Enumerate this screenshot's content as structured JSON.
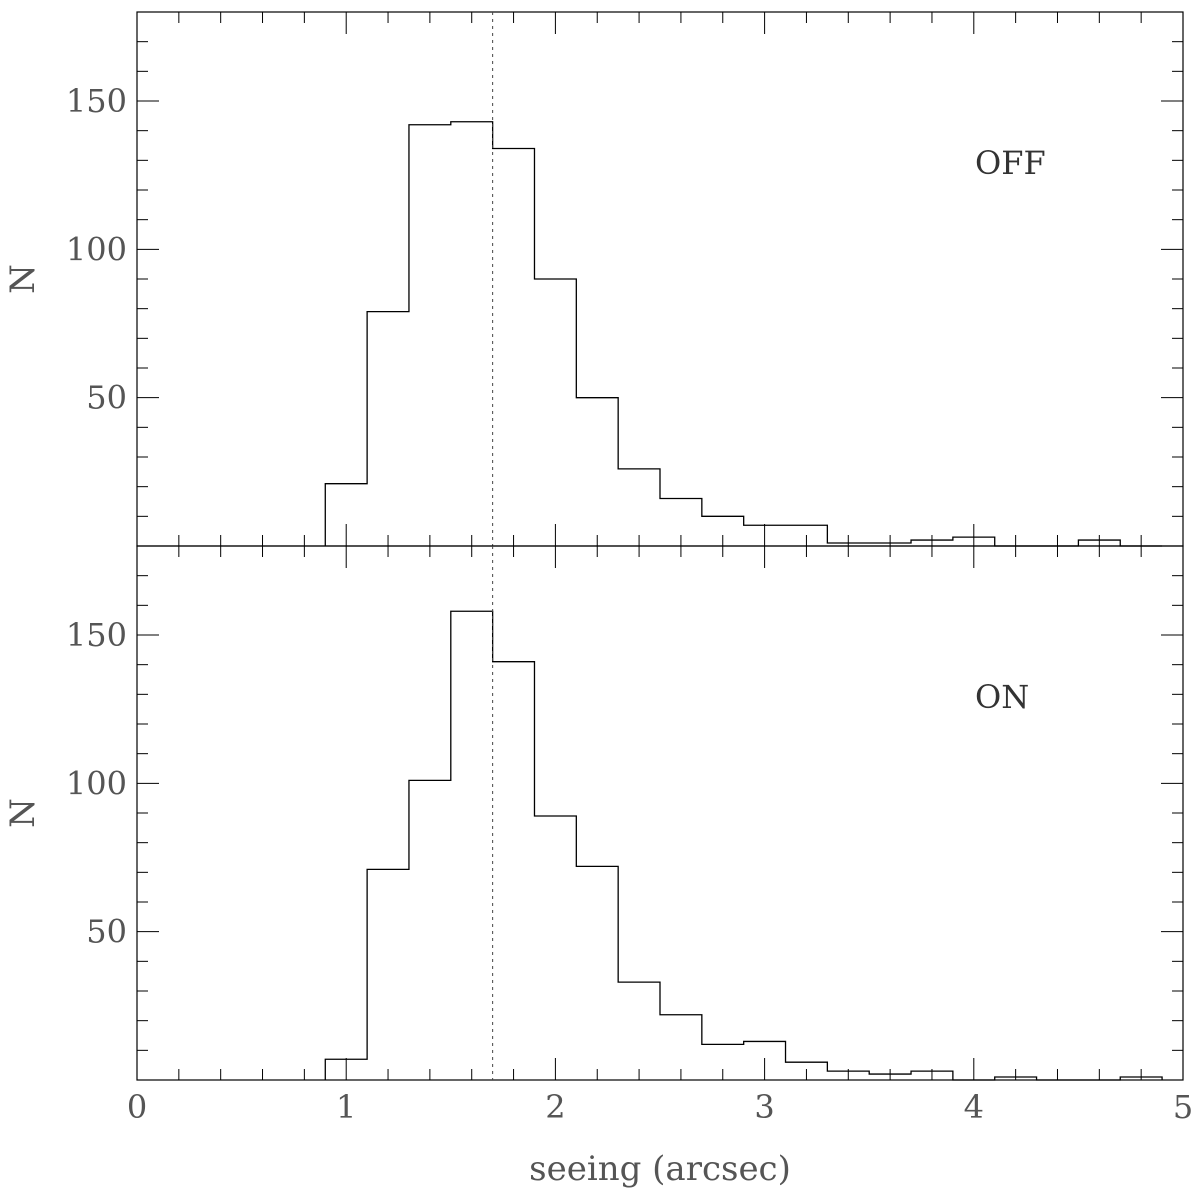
{
  "chart_data": [
    {
      "type": "histogram",
      "panel": "top",
      "label": "OFF",
      "ylabel": "N",
      "xlabel": "",
      "xlim": [
        0,
        5
      ],
      "ylim": [
        0,
        180
      ],
      "x_ticks": [
        0,
        1,
        2,
        3,
        4,
        5
      ],
      "y_ticks": [
        50,
        100,
        150
      ],
      "x_tick_labels": [],
      "y_tick_labels": [
        "50",
        "100",
        "150"
      ],
      "bin_edges": [
        0.9,
        1.1,
        1.3,
        1.5,
        1.7,
        1.9,
        2.1,
        2.3,
        2.5,
        2.7,
        2.9,
        3.1,
        3.3,
        3.5,
        3.7,
        3.9,
        4.1,
        4.3,
        4.5,
        4.7,
        4.9
      ],
      "counts": [
        21,
        79,
        142,
        143,
        134,
        90,
        50,
        26,
        16,
        10,
        7,
        7,
        1,
        1,
        2,
        3,
        0,
        0,
        2,
        0
      ],
      "reference_line_x": 1.7,
      "grid": false
    },
    {
      "type": "histogram",
      "panel": "bottom",
      "label": "ON",
      "ylabel": "N",
      "xlabel": "seeing (arcsec)",
      "xlim": [
        0,
        5
      ],
      "ylim": [
        0,
        180
      ],
      "x_ticks": [
        0,
        1,
        2,
        3,
        4,
        5
      ],
      "y_ticks": [
        50,
        100,
        150
      ],
      "x_tick_labels": [
        "0",
        "1",
        "2",
        "3",
        "4",
        "5"
      ],
      "y_tick_labels": [
        "50",
        "100",
        "150"
      ],
      "bin_edges": [
        0.9,
        1.1,
        1.3,
        1.5,
        1.7,
        1.9,
        2.1,
        2.3,
        2.5,
        2.7,
        2.9,
        3.1,
        3.3,
        3.5,
        3.7,
        3.9,
        4.1,
        4.3,
        4.5,
        4.7,
        4.9
      ],
      "counts": [
        7,
        71,
        101,
        158,
        141,
        89,
        72,
        33,
        22,
        12,
        13,
        6,
        3,
        2,
        3,
        0,
        1,
        0,
        0,
        1
      ],
      "reference_line_x": 1.7,
      "grid": false
    }
  ],
  "colors": {
    "line": "#000000",
    "reference_line": "#444444",
    "text": "#555555"
  }
}
